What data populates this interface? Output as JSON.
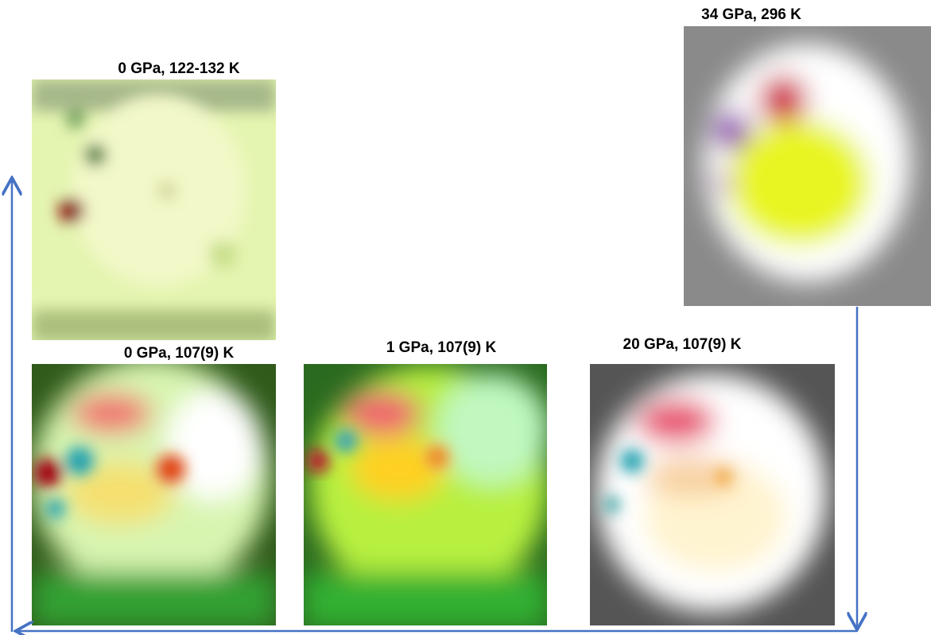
{
  "panels": [
    {
      "label": "0 GPa, 122-132 K"
    },
    {
      "label": "34 GPa, 296 K"
    },
    {
      "label": "0 GPa, 107(9) K"
    },
    {
      "label": "1 GPa, 107(9) K"
    },
    {
      "label": "20 GPa, 107(9) K"
    }
  ]
}
